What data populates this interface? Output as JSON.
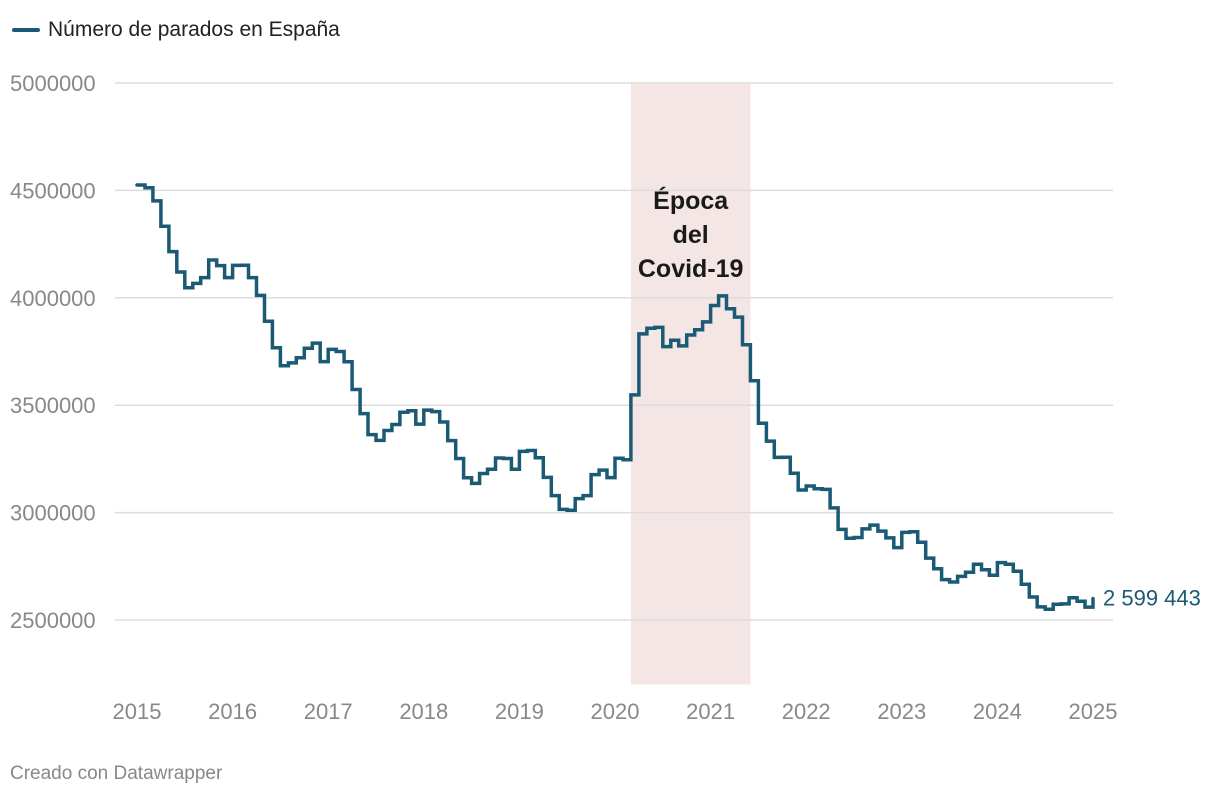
{
  "colors": {
    "series": "#1b5a75",
    "grid": "#dddddd",
    "axis_text": "#888888",
    "highlight": "#f5e6e6",
    "annotation_text": "#1a1a1a",
    "end_label": "#1b5a75"
  },
  "legend": {
    "label": "Número de parados en España"
  },
  "footer": {
    "text": "Creado con Datawrapper"
  },
  "chart_data": {
    "type": "line",
    "step": true,
    "title": "",
    "xlabel": "",
    "ylabel": "",
    "x_ticks": [
      "2015",
      "2016",
      "2017",
      "2018",
      "2019",
      "2020",
      "2021",
      "2022",
      "2023",
      "2024",
      "2025"
    ],
    "y_ticks": [
      "2500000",
      "3000000",
      "3500000",
      "4000000",
      "4500000",
      "5000000"
    ],
    "ylim": [
      2200000,
      5000000
    ],
    "xlim": [
      "2015-01",
      "2025-01"
    ],
    "grid": true,
    "highlight": {
      "from": "2020-03",
      "to": "2021-06",
      "label": [
        "Época",
        "del",
        "Covid-19"
      ]
    },
    "end_label": "2 599 443",
    "series": [
      {
        "name": "Número de parados en España",
        "x": [
          "2015-01",
          "2015-02",
          "2015-03",
          "2015-04",
          "2015-05",
          "2015-06",
          "2015-07",
          "2015-08",
          "2015-09",
          "2015-10",
          "2015-11",
          "2015-12",
          "2016-01",
          "2016-02",
          "2016-03",
          "2016-04",
          "2016-05",
          "2016-06",
          "2016-07",
          "2016-08",
          "2016-09",
          "2016-10",
          "2016-11",
          "2016-12",
          "2017-01",
          "2017-02",
          "2017-03",
          "2017-04",
          "2017-05",
          "2017-06",
          "2017-07",
          "2017-08",
          "2017-09",
          "2017-10",
          "2017-11",
          "2017-12",
          "2018-01",
          "2018-02",
          "2018-03",
          "2018-04",
          "2018-05",
          "2018-06",
          "2018-07",
          "2018-08",
          "2018-09",
          "2018-10",
          "2018-11",
          "2018-12",
          "2019-01",
          "2019-02",
          "2019-03",
          "2019-04",
          "2019-05",
          "2019-06",
          "2019-07",
          "2019-08",
          "2019-09",
          "2019-10",
          "2019-11",
          "2019-12",
          "2020-01",
          "2020-02",
          "2020-03",
          "2020-04",
          "2020-05",
          "2020-06",
          "2020-07",
          "2020-08",
          "2020-09",
          "2020-10",
          "2020-11",
          "2020-12",
          "2021-01",
          "2021-02",
          "2021-03",
          "2021-04",
          "2021-05",
          "2021-06",
          "2021-07",
          "2021-08",
          "2021-09",
          "2021-10",
          "2021-11",
          "2021-12",
          "2022-01",
          "2022-02",
          "2022-03",
          "2022-04",
          "2022-05",
          "2022-06",
          "2022-07",
          "2022-08",
          "2022-09",
          "2022-10",
          "2022-11",
          "2022-12",
          "2023-01",
          "2023-02",
          "2023-03",
          "2023-04",
          "2023-05",
          "2023-06",
          "2023-07",
          "2023-08",
          "2023-09",
          "2023-10",
          "2023-11",
          "2023-12",
          "2024-01",
          "2024-02",
          "2024-03",
          "2024-04",
          "2024-05",
          "2024-06",
          "2024-07",
          "2024-08",
          "2024-09",
          "2024-10",
          "2024-11",
          "2024-12",
          "2025-01"
        ],
        "values": [
          4525000,
          4512000,
          4451000,
          4333000,
          4215000,
          4120000,
          4047000,
          4067000,
          4094000,
          4176000,
          4150000,
          4094000,
          4151000,
          4152000,
          4094000,
          4011000,
          3891000,
          3767000,
          3684000,
          3697000,
          3721000,
          3765000,
          3789000,
          3703000,
          3760000,
          3750000,
          3702000,
          3573000,
          3461000,
          3363000,
          3336000,
          3382000,
          3410000,
          3467000,
          3474000,
          3412000,
          3477000,
          3470000,
          3422000,
          3335000,
          3252000,
          3162000,
          3136000,
          3182000,
          3202000,
          3254000,
          3252000,
          3202000,
          3285000,
          3289000,
          3255000,
          3164000,
          3079000,
          3015000,
          3011000,
          3065000,
          3079000,
          3177000,
          3198000,
          3163000,
          3253000,
          3246000,
          3548000,
          3832000,
          3858000,
          3862000,
          3773000,
          3802000,
          3776000,
          3827000,
          3851000,
          3888000,
          3964000,
          4009000,
          3949000,
          3910000,
          3781000,
          3614000,
          3416000,
          3333000,
          3257000,
          3258000,
          3183000,
          3105000,
          3124000,
          3111000,
          3108000,
          3022000,
          2922000,
          2881000,
          2884000,
          2924000,
          2942000,
          2914000,
          2882000,
          2837000,
          2908000,
          2911000,
          2862000,
          2788000,
          2739000,
          2688000,
          2677000,
          2703000,
          2722000,
          2760000,
          2734000,
          2708000,
          2767000,
          2760000,
          2727000,
          2666000,
          2607000,
          2561000,
          2550000,
          2573000,
          2575000,
          2604000,
          2587000,
          2560000,
          2599443
        ]
      }
    ]
  }
}
